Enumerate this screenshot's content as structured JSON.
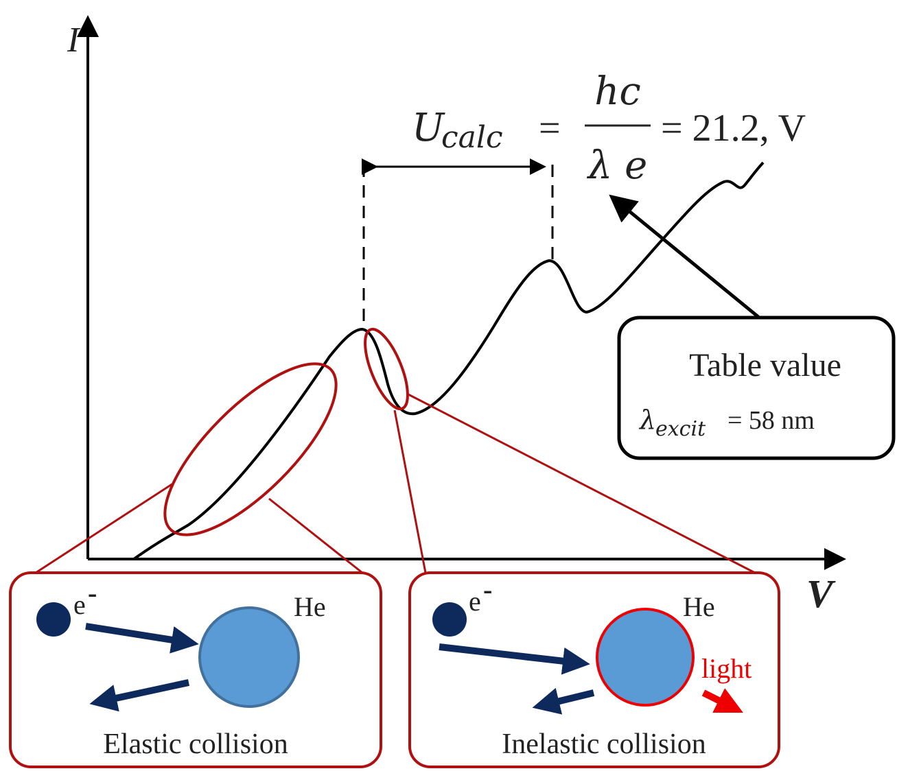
{
  "axes": {
    "y_label": "I",
    "x_label": "V"
  },
  "formula": {
    "symbol": "U",
    "subscript": "calc",
    "equals": "=",
    "numerator": "hc",
    "denominator": "λ e",
    "result": "= 21.2, V"
  },
  "callout": {
    "title": "Table value",
    "symbol": "λ",
    "subscript": "excit",
    "value": "= 58 nm"
  },
  "panels": [
    {
      "electron": "e",
      "charge": "-",
      "atom": "He",
      "caption": "Elastic collision"
    },
    {
      "electron": "e",
      "charge": "-",
      "atom": "He",
      "emission": "light",
      "caption": "Inelastic collision"
    }
  ]
}
